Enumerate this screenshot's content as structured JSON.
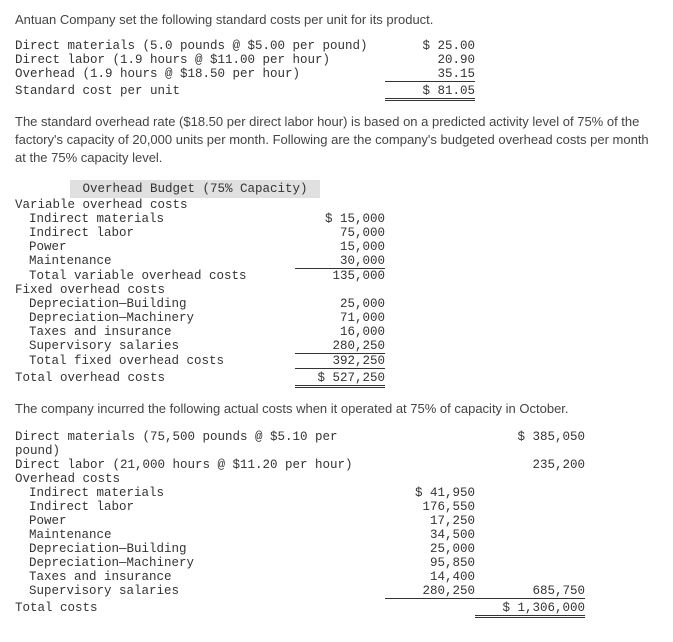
{
  "intro": "Antuan Company set the following standard costs per unit for its product.",
  "standard_costs": {
    "rows": [
      {
        "label": "Direct materials (5.0 pounds @ $5.00 per pound)",
        "amount": "$ 25.00"
      },
      {
        "label": "Direct labor (1.9 hours @ $11.00 per hour)",
        "amount": "20.90"
      },
      {
        "label": "Overhead (1.9 hours @ $18.50 per hour)",
        "amount": "35.15"
      }
    ],
    "total": {
      "label": "Standard cost per unit",
      "amount": "$ 81.05"
    }
  },
  "overhead_intro": "The standard overhead rate ($18.50 per direct labor hour) is based on a predicted activity level of 75% of the factory's capacity of 20,000 units per month. Following are the company's budgeted overhead costs per month at the 75% capacity level.",
  "budget": {
    "header": "Overhead Budget (75% Capacity)",
    "variable_header": "Variable overhead costs",
    "variable_rows": [
      {
        "label": "Indirect materials",
        "amount": "$ 15,000"
      },
      {
        "label": "Indirect labor",
        "amount": "75,000"
      },
      {
        "label": "Power",
        "amount": "15,000"
      },
      {
        "label": "Maintenance",
        "amount": "30,000"
      }
    ],
    "variable_total": {
      "label": "Total variable overhead costs",
      "amount": "135,000"
    },
    "fixed_header": "Fixed overhead costs",
    "fixed_rows": [
      {
        "label": "Depreciation—Building",
        "amount": "25,000"
      },
      {
        "label": "Depreciation—Machinery",
        "amount": "71,000"
      },
      {
        "label": "Taxes and insurance",
        "amount": "16,000"
      },
      {
        "label": "Supervisory salaries",
        "amount": "280,250"
      }
    ],
    "fixed_total": {
      "label": "Total fixed overhead costs",
      "amount": "392,250"
    },
    "grand_total": {
      "label": "Total overhead costs",
      "amount": "$ 527,250"
    }
  },
  "actual_intro": "The company incurred the following actual costs when it operated at 75% of capacity in October.",
  "actual": {
    "direct_rows": [
      {
        "label": "Direct materials (75,500 pounds @ $5.10 per pound)",
        "total": "$ 385,050"
      },
      {
        "label": "Direct labor (21,000 hours @ $11.20 per hour)",
        "total": "235,200"
      }
    ],
    "overhead_header": "Overhead costs",
    "overhead_rows": [
      {
        "label": "Indirect materials",
        "detail": "$ 41,950"
      },
      {
        "label": "Indirect labor",
        "detail": "176,550"
      },
      {
        "label": "Power",
        "detail": "17,250"
      },
      {
        "label": "Maintenance",
        "detail": "34,500"
      },
      {
        "label": "Depreciation—Building",
        "detail": "25,000"
      },
      {
        "label": "Depreciation—Machinery",
        "detail": "95,850"
      },
      {
        "label": "Taxes and insurance",
        "detail": "14,400"
      }
    ],
    "overhead_last": {
      "label": "Supervisory salaries",
      "detail": "280,250",
      "total": "685,750"
    },
    "grand_total": {
      "label": "Total costs",
      "total": "$ 1,306,000"
    }
  }
}
